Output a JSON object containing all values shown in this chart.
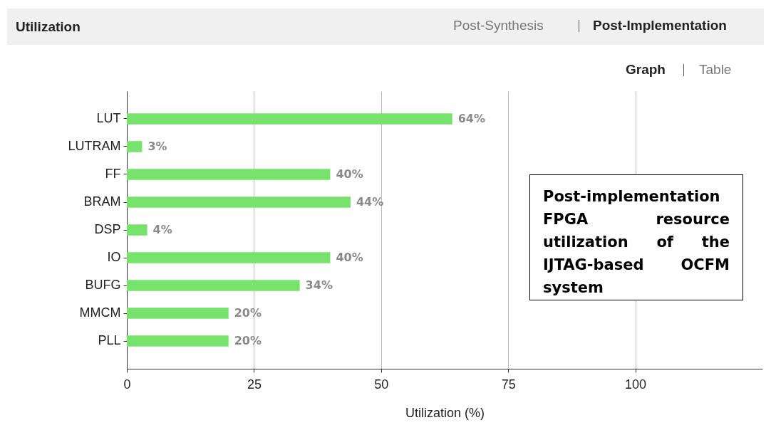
{
  "chart_data": {
    "type": "bar",
    "orientation": "horizontal",
    "categories": [
      "LUT",
      "LUTRAM",
      "FF",
      "BRAM",
      "DSP",
      "IO",
      "BUFG",
      "MMCM",
      "PLL"
    ],
    "values": [
      64,
      3,
      40,
      44,
      4,
      40,
      34,
      20,
      20
    ],
    "value_labels": [
      "64%",
      "3%",
      "40%",
      "44%",
      "4%",
      "40%",
      "34%",
      "20%",
      "20%"
    ],
    "color": "#77e36d",
    "xlim": [
      0,
      125
    ],
    "xticks": [
      0,
      25,
      50,
      75,
      100
    ],
    "xlabel": "Utilization (%)",
    "grid": "x",
    "annotations": [
      "Utilization",
      "Post-Synthesis",
      "Post-Implementation",
      "Graph",
      "Table",
      "Post-implementation FPGA resource utilization of the IJTAG-based OCFM system"
    ]
  }
}
